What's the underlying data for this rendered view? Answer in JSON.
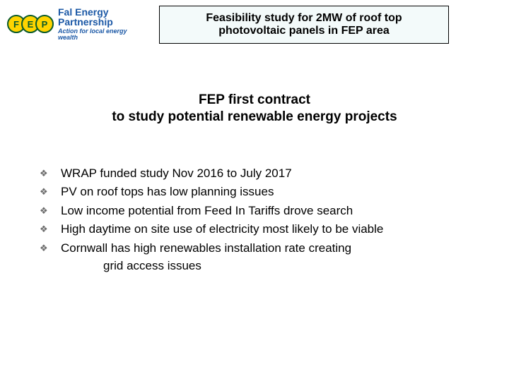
{
  "logo": {
    "letters": [
      "F",
      "E",
      "P"
    ],
    "name_l1": "Fal Energy",
    "name_l2": "Partnership",
    "tagline": "Action for local energy wealth"
  },
  "title": {
    "line1": "Feasibility study for 2MW of roof top",
    "line2": "photovoltaic panels in FEP area",
    "bg_color": "#f3fafa",
    "border_color": "#000000"
  },
  "subtitle": {
    "line1": "FEP first contract",
    "line2": "to study potential renewable energy projects"
  },
  "bullets": [
    {
      "text": "WRAP funded study Nov 2016 to July 2017"
    },
    {
      "text": "PV on roof tops has low planning issues"
    },
    {
      "text": "Low income potential from Feed In Tariffs drove search"
    },
    {
      "text": "High daytime on site use of electricity most likely to be viable"
    },
    {
      "text": "Cornwall has high renewables installation rate creating",
      "cont": "grid access issues"
    }
  ],
  "colors": {
    "background": "#ffffff",
    "text": "#000000",
    "bullet_icon": "#6a6a6a",
    "logo_blue": "#1b58a6",
    "logo_yellow": "#ffd400",
    "logo_green": "#0a5a2a"
  },
  "fontsizes": {
    "title": 16,
    "subtitle": 19,
    "body": 17
  }
}
